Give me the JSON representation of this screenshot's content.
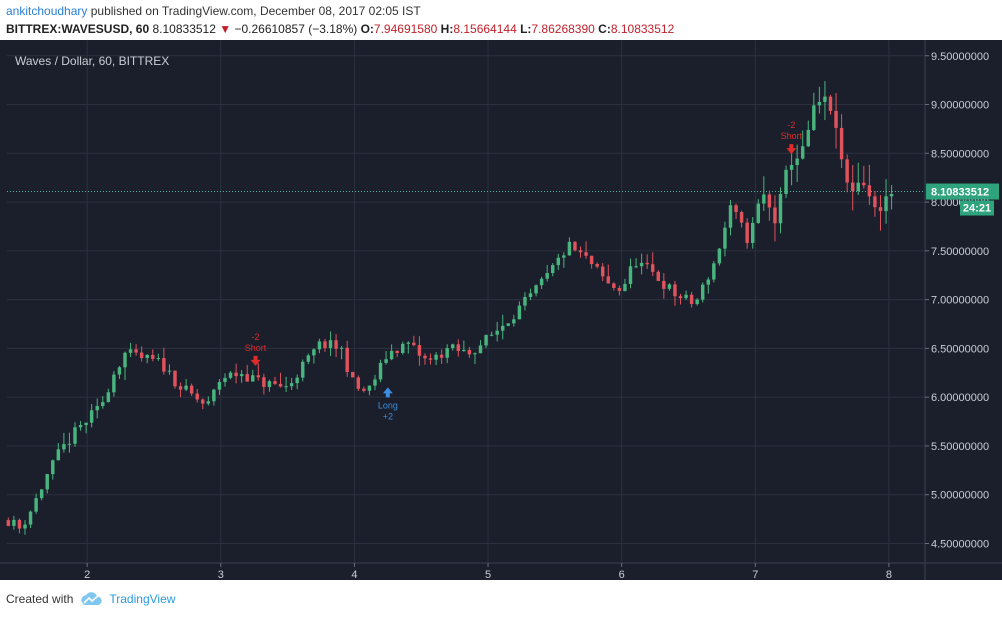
{
  "header": {
    "username": "ankitchoudhary",
    "published_text": " published on TradingView.com, December 08, 2017 02:05 IST"
  },
  "ohlc_bar": {
    "symbol": "BITTREX:WAVESUSD, 60",
    "last": "8.10833512",
    "change": "−0.26610857 (−3.18%)",
    "o_label": "O:",
    "o_value": "7.94691580",
    "h_label": "H:",
    "h_value": "8.15664144",
    "l_label": "L:",
    "l_value": "7.86268390",
    "c_label": "C:",
    "c_value": "8.10833512"
  },
  "footer": {
    "created_with": "Created with",
    "brand": "TradingView"
  },
  "colors": {
    "background": "#1b1f2b",
    "grid": "#2c3140",
    "up": "#48b57e",
    "down": "#e0535d",
    "price_line": "#4fb6a0",
    "price_tag": "#2ea37c",
    "signal_short": "#e02b2b",
    "signal_long": "#3a8de0"
  },
  "chart_data": {
    "type": "candlestick",
    "title": "Waves / Dollar, 60, BITTREX",
    "x_ticks": [
      "2",
      "3",
      "4",
      "5",
      "6",
      "7",
      "8"
    ],
    "y_ticks": [
      "4.50000000",
      "5.00000000",
      "5.50000000",
      "6.00000000",
      "6.50000000",
      "7.00000000",
      "7.50000000",
      "8.00000000",
      "8.50000000",
      "9.00000000",
      "9.50000000"
    ],
    "ylim": [
      4.3,
      9.6
    ],
    "x_range": [
      1.4,
      8.27
    ],
    "current_price": "8.10833512",
    "countdown": "24:21",
    "current_value": 8.108,
    "price_path": [
      [
        1.4,
        4.75
      ],
      [
        1.5,
        4.65
      ],
      [
        1.6,
        4.9
      ],
      [
        1.7,
        5.2
      ],
      [
        1.8,
        5.45
      ],
      [
        1.95,
        5.7
      ],
      [
        2.1,
        5.9
      ],
      [
        2.2,
        6.25
      ],
      [
        2.28,
        6.45
      ],
      [
        2.4,
        6.4
      ],
      [
        2.55,
        6.35
      ],
      [
        2.7,
        6.1
      ],
      [
        2.9,
        5.9
      ],
      [
        3.0,
        6.2
      ],
      [
        3.15,
        6.25
      ],
      [
        3.3,
        6.15
      ],
      [
        3.5,
        6.1
      ],
      [
        3.6,
        6.3
      ],
      [
        3.75,
        6.55
      ],
      [
        3.9,
        6.5
      ],
      [
        4.0,
        6.1
      ],
      [
        4.1,
        6.05
      ],
      [
        4.25,
        6.45
      ],
      [
        4.4,
        6.55
      ],
      [
        4.55,
        6.35
      ],
      [
        4.7,
        6.5
      ],
      [
        4.85,
        6.45
      ],
      [
        5.0,
        6.6
      ],
      [
        5.15,
        6.8
      ],
      [
        5.3,
        7.0
      ],
      [
        5.45,
        7.25
      ],
      [
        5.6,
        7.55
      ],
      [
        5.75,
        7.4
      ],
      [
        5.9,
        7.15
      ],
      [
        6.0,
        7.1
      ],
      [
        6.1,
        7.4
      ],
      [
        6.25,
        7.25
      ],
      [
        6.4,
        7.05
      ],
      [
        6.55,
        6.95
      ],
      [
        6.7,
        7.4
      ],
      [
        6.82,
        7.95
      ],
      [
        6.95,
        7.6
      ],
      [
        7.05,
        8.1
      ],
      [
        7.15,
        7.8
      ],
      [
        7.25,
        8.4
      ],
      [
        7.35,
        8.5
      ],
      [
        7.45,
        9.0
      ],
      [
        7.55,
        9.05
      ],
      [
        7.62,
        8.6
      ],
      [
        7.7,
        8.1
      ],
      [
        7.8,
        8.25
      ],
      [
        7.9,
        7.9
      ],
      [
        8.02,
        8.1
      ]
    ],
    "signals": [
      {
        "label": "Short",
        "value": "-2",
        "x": 3.26,
        "price": 6.28,
        "dir": "short"
      },
      {
        "label": "Long",
        "value": "+2",
        "x": 4.25,
        "price": 6.1,
        "dir": "long"
      },
      {
        "label": "Short",
        "value": "-2",
        "x": 7.27,
        "price": 8.45,
        "dir": "short"
      }
    ]
  }
}
